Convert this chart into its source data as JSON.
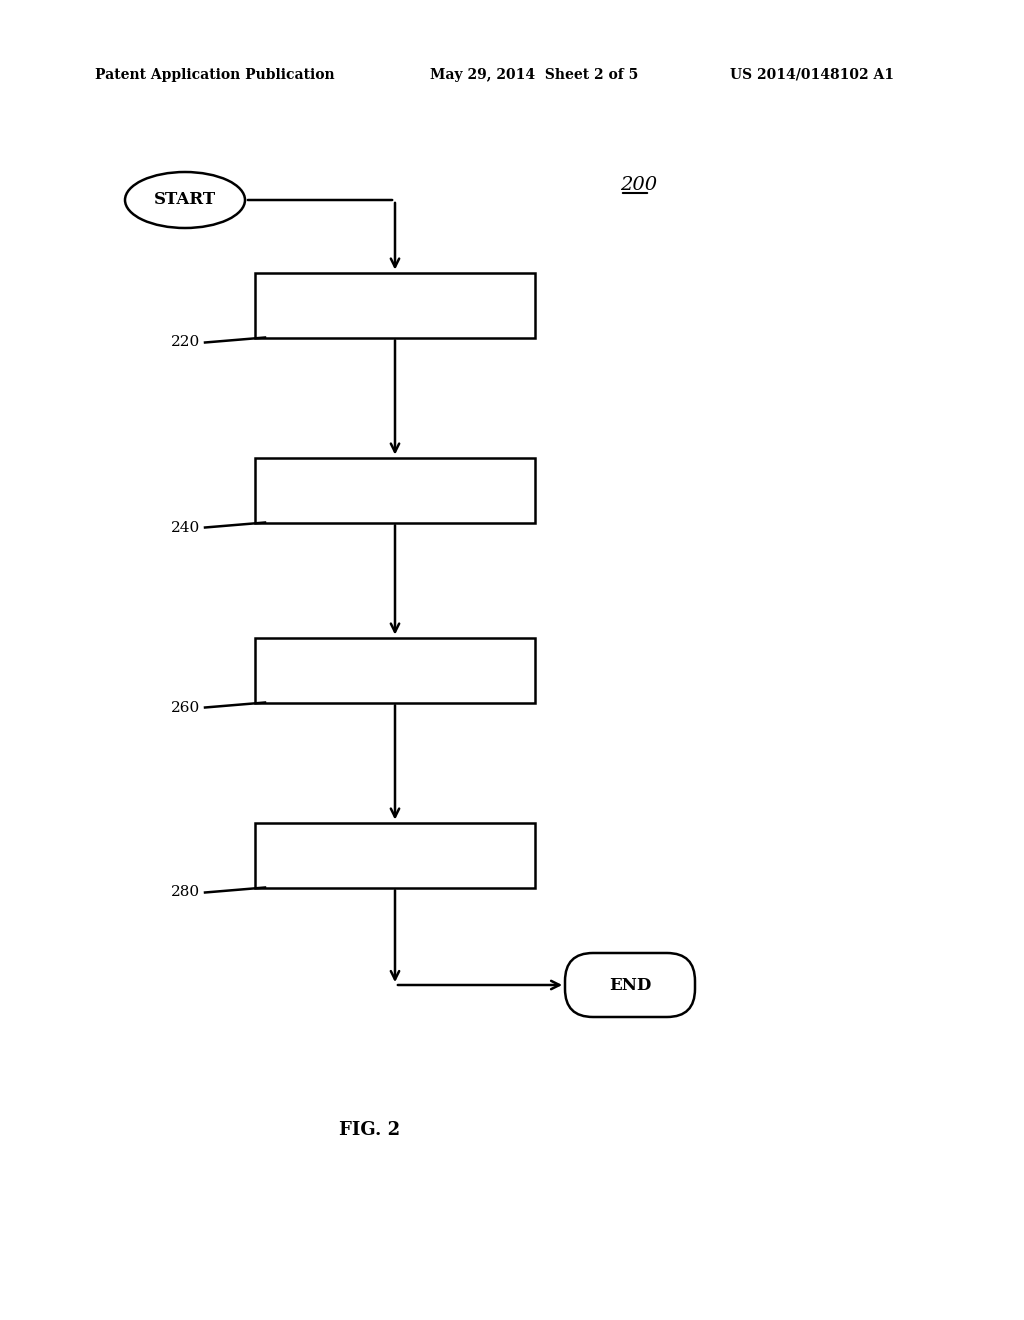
{
  "bg_color": "#ffffff",
  "header_left": "Patent Application Publication",
  "header_center": "May 29, 2014  Sheet 2 of 5",
  "header_right": "US 2014/0148102 A1",
  "fig_label": "FIG. 2",
  "diagram_ref": "200",
  "start_label": "START",
  "end_label": "END",
  "box_labels": [
    "220",
    "240",
    "260",
    "280"
  ],
  "line_color": "#000000",
  "text_color": "#000000",
  "box_color": "#ffffff",
  "box_edge_color": "#000000"
}
